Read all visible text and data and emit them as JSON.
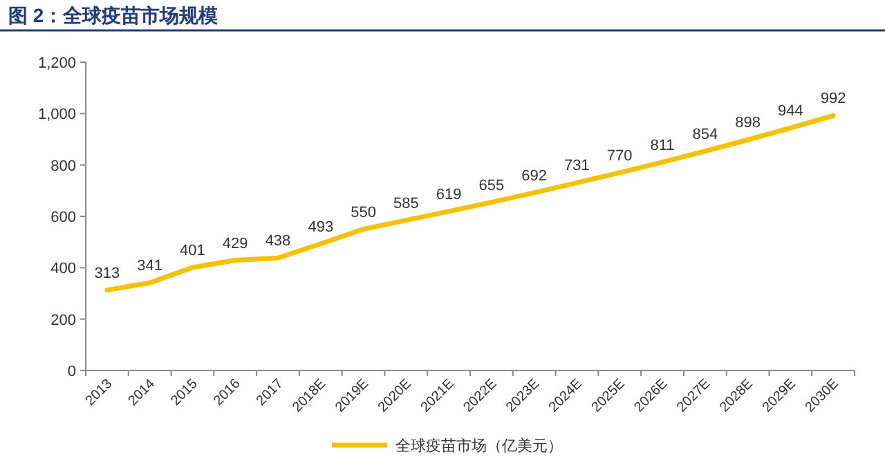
{
  "chart_data": {
    "type": "line",
    "title": "图 2：全球疫苗市场规模",
    "categories": [
      "2013",
      "2014",
      "2015",
      "2016",
      "2017",
      "2018E",
      "2019E",
      "2020E",
      "2021E",
      "2022E",
      "2023E",
      "2024E",
      "2025E",
      "2026E",
      "2027E",
      "2028E",
      "2029E",
      "2030E"
    ],
    "series": [
      {
        "name": "全球疫苗市场（亿美元）",
        "color": "#f5c100",
        "values": [
          313,
          341,
          401,
          429,
          438,
          493,
          550,
          585,
          619,
          655,
          692,
          731,
          770,
          811,
          854,
          898,
          944,
          992
        ]
      }
    ],
    "ylim": [
      0,
      1200
    ],
    "yticks": [
      0,
      200,
      400,
      600,
      800,
      {
        "value": 1000,
        "label": "1,000"
      },
      {
        "value": 1200,
        "label": "1,200"
      }
    ],
    "data_labels": true,
    "legend": "bottom"
  }
}
